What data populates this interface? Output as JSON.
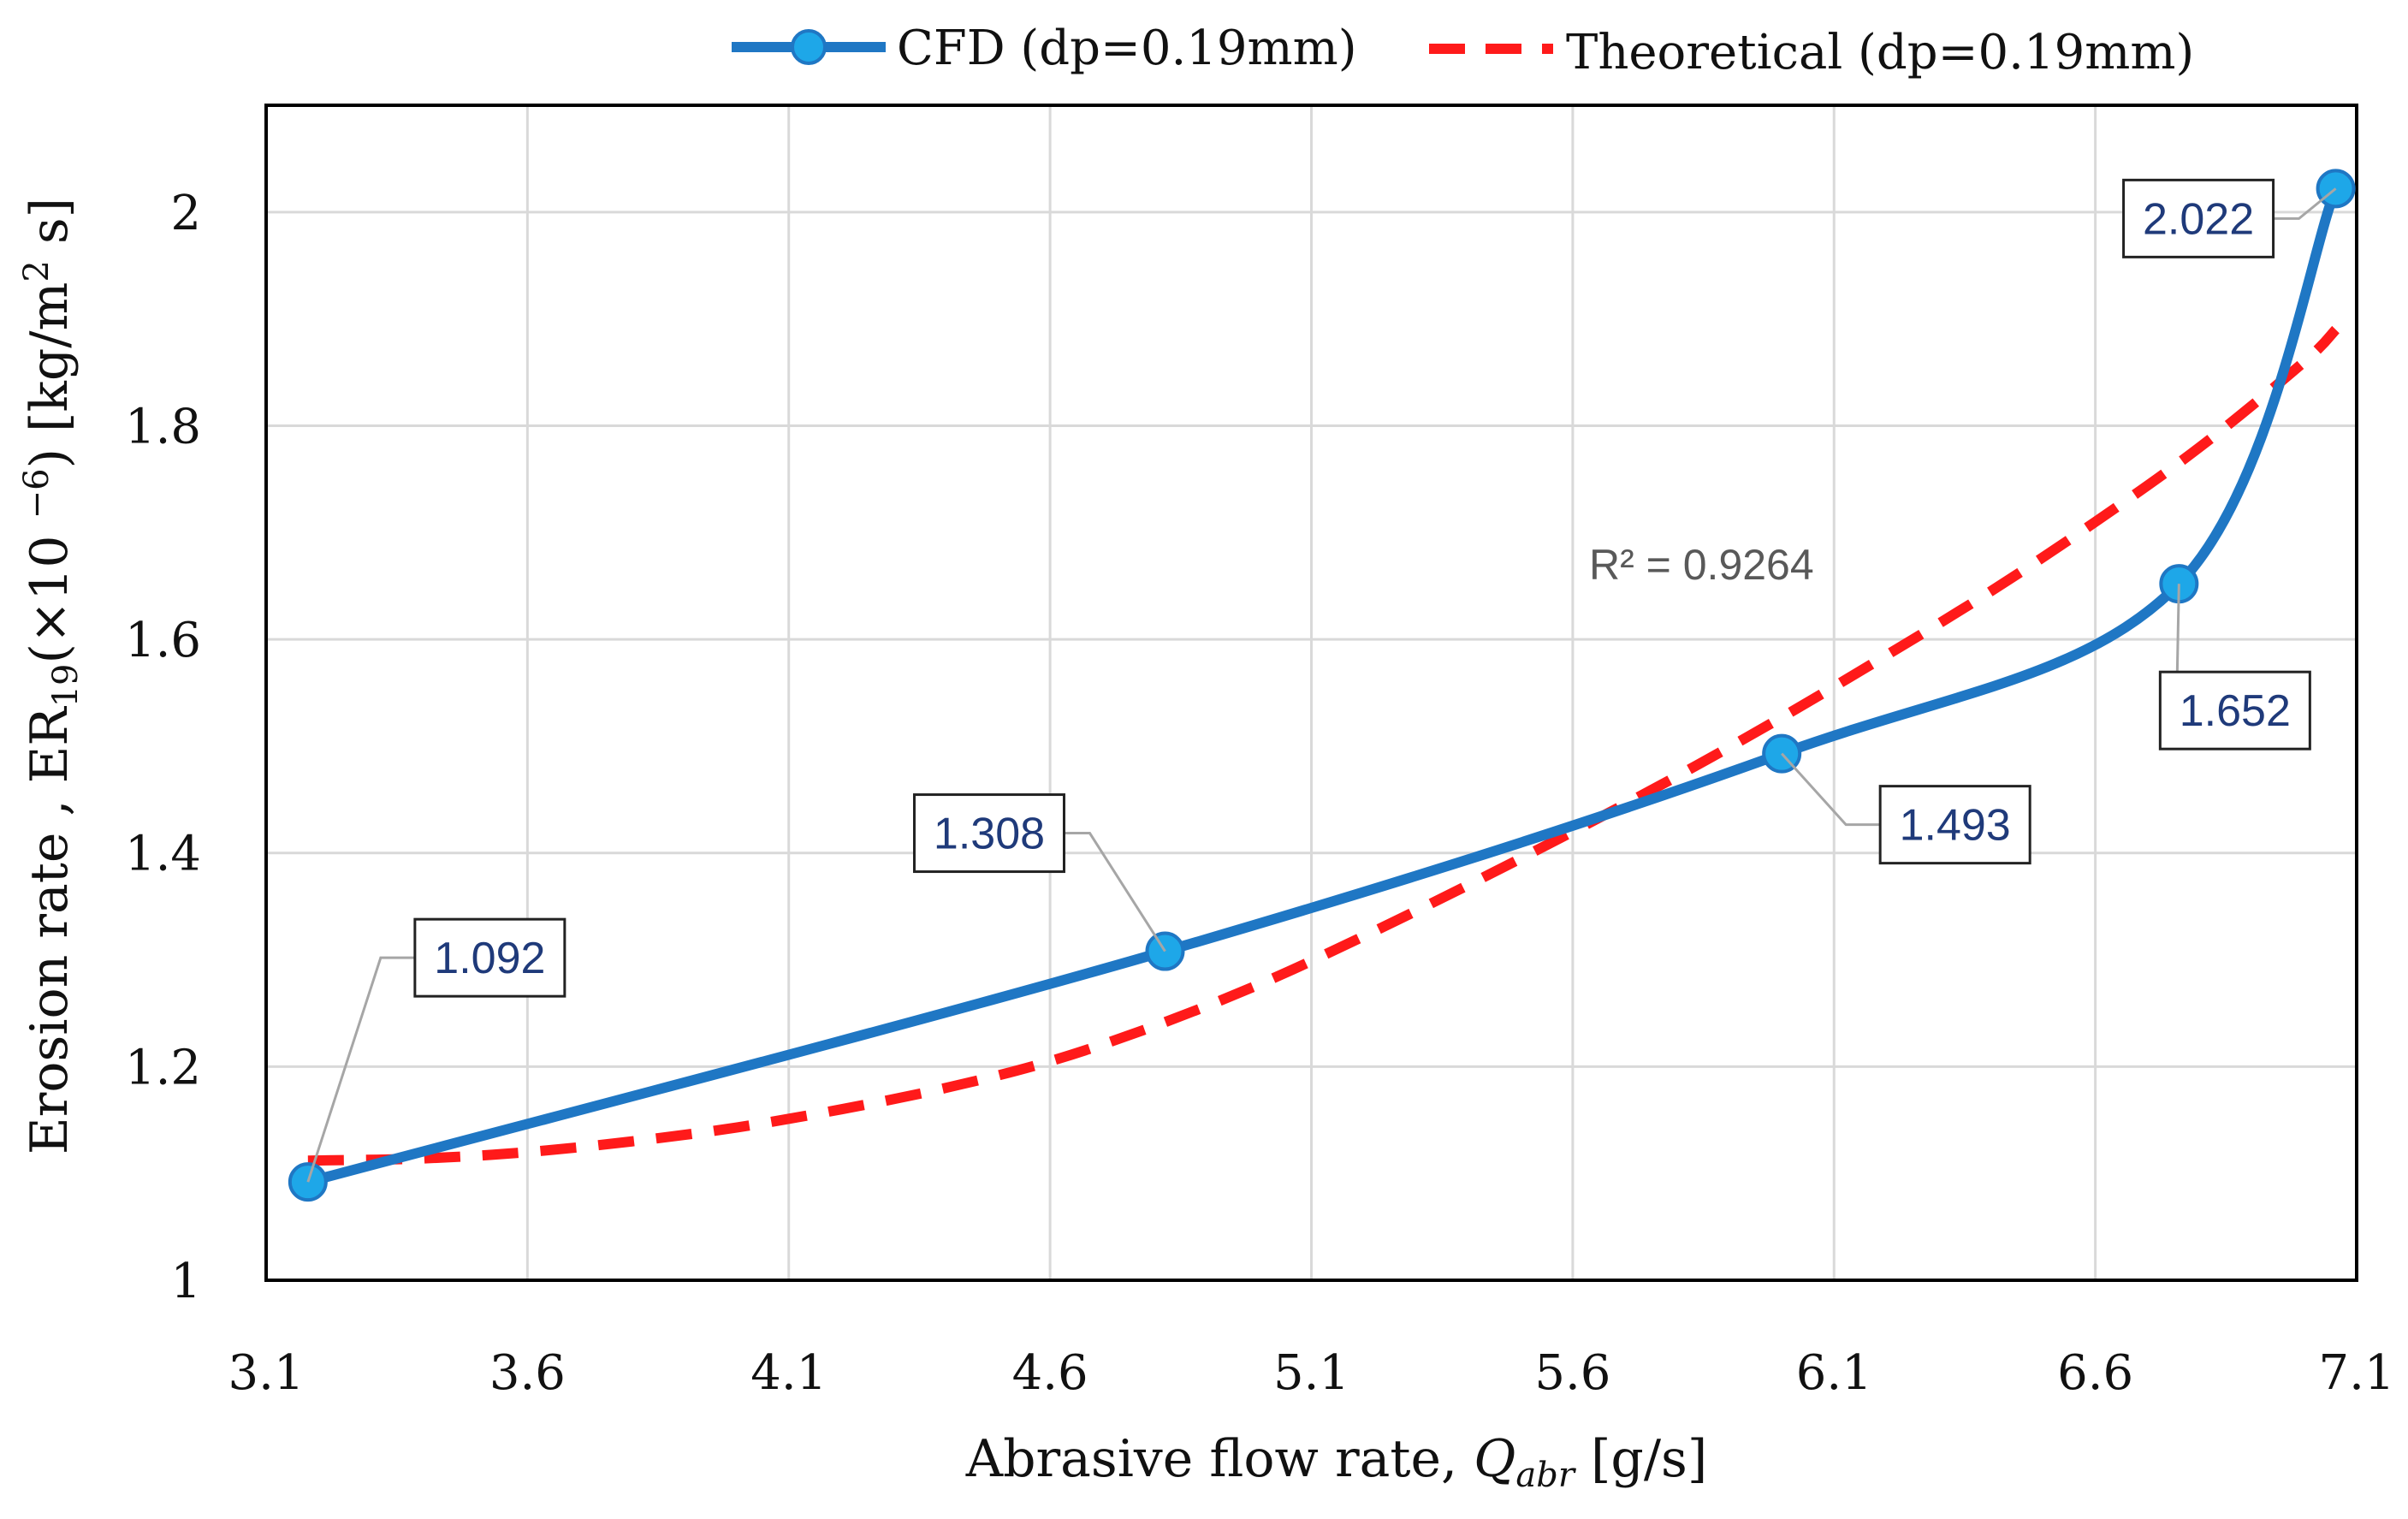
{
  "chart_data": {
    "type": "line",
    "xlabel_main": "Abrasive flow rate, ",
    "xlabel_var": "Q",
    "xlabel_sub": "abr",
    "xlabel_unit": " [g/s]",
    "ylabel_pre": "Erosion rate , ER",
    "ylabel_sub": "19",
    "ylabel_mid": "(×10 ",
    "ylabel_exp": "−6",
    "ylabel_post": ") [kg/m",
    "ylabel_exp2": "2",
    "ylabel_end": " s]",
    "xlim": [
      3.1,
      7.1
    ],
    "ylim": [
      1,
      2.1
    ],
    "x_ticks": [
      3.1,
      3.6,
      4.1,
      4.6,
      5.1,
      5.6,
      6.1,
      6.6,
      7.1
    ],
    "x_tick_labels": [
      "3.1",
      "3.6",
      "4.1",
      "4.6",
      "5.1",
      "5.6",
      "6.1",
      "6.6",
      "7.1"
    ],
    "y_ticks": [
      1,
      1.2,
      1.4,
      1.6,
      1.8,
      2
    ],
    "y_tick_labels": [
      "1",
      "1.2",
      "1.4",
      "1.6",
      "1.8",
      "2"
    ],
    "grid": true,
    "legend_position": "top",
    "series": [
      {
        "name": "CFD (dp=0.19mm)",
        "style": "solid-with-markers",
        "color": "#1f77c4",
        "marker_color": "#1ea7e8",
        "x": [
          3.18,
          4.82,
          6.0,
          6.76,
          7.06
        ],
        "y": [
          1.092,
          1.308,
          1.493,
          1.652,
          2.022
        ],
        "labels": [
          "1.092",
          "1.308",
          "1.493",
          "1.652",
          "2.022"
        ]
      },
      {
        "name": "Theoretical (dp=0.19mm)",
        "style": "dashed",
        "color": "#ff1a1a",
        "x": [
          3.18,
          3.4,
          3.6,
          3.8,
          4.0,
          4.2,
          4.4,
          4.6,
          4.8,
          5.0,
          5.2,
          5.4,
          5.6,
          5.8,
          6.0,
          6.2,
          6.4,
          6.6,
          6.8,
          7.0,
          7.06
        ],
        "y": [
          1.112,
          1.114,
          1.12,
          1.13,
          1.143,
          1.16,
          1.18,
          1.205,
          1.238,
          1.277,
          1.322,
          1.37,
          1.42,
          1.472,
          1.527,
          1.585,
          1.645,
          1.71,
          1.78,
          1.86,
          1.89
        ]
      }
    ],
    "annotation": "R² = 0.9264"
  }
}
